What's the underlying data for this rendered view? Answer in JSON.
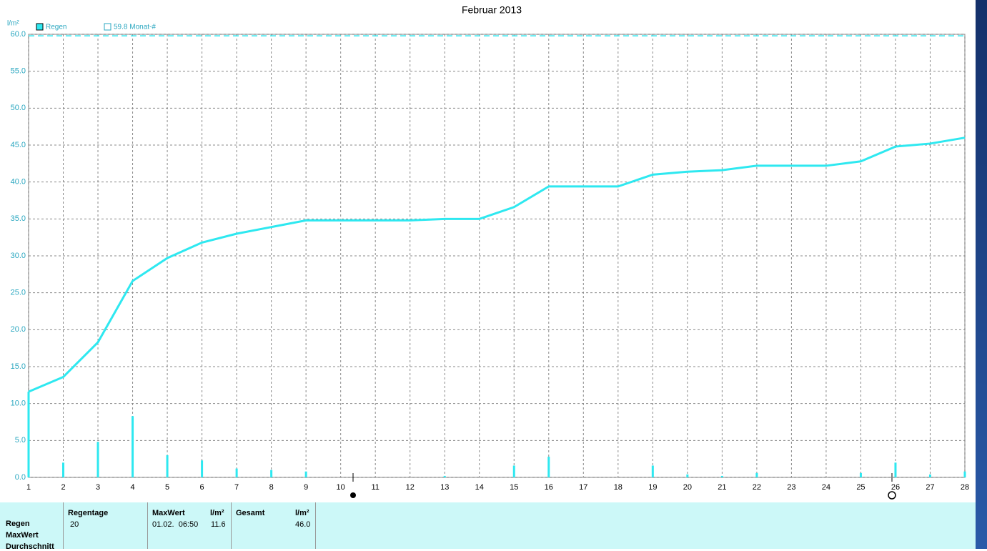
{
  "chart_data": {
    "type": "line",
    "title": "Februar 2013",
    "y_label": "l/m²",
    "x": [
      1,
      2,
      3,
      4,
      5,
      6,
      7,
      8,
      9,
      10,
      11,
      12,
      13,
      14,
      15,
      16,
      17,
      18,
      19,
      20,
      21,
      22,
      23,
      24,
      25,
      26,
      27,
      28
    ],
    "series": [
      {
        "name": "Regen",
        "color": "#2ee8f0",
        "values": [
          11.6,
          13.6,
          18.3,
          26.6,
          29.7,
          31.8,
          33.0,
          33.9,
          34.8,
          34.8,
          34.8,
          34.8,
          35.0,
          35.0,
          36.6,
          39.4,
          39.4,
          39.4,
          41.0,
          41.4,
          41.6,
          42.2,
          42.2,
          42.2,
          42.8,
          44.8,
          45.2,
          46.0
        ],
        "daily": [
          11.6,
          2.0,
          4.8,
          8.3,
          3.0,
          2.3,
          1.2,
          1.0,
          0.8,
          0,
          0,
          0,
          0.2,
          0,
          1.6,
          2.8,
          0,
          0,
          1.6,
          0.4,
          0.2,
          0.6,
          0,
          0,
          0.6,
          2.0,
          0.4,
          0.8
        ]
      }
    ],
    "reference": {
      "label": "59.8 Monat-#",
      "value": 59.8
    },
    "xlim": [
      1,
      28
    ],
    "xticks": [
      1,
      2,
      3,
      4,
      5,
      6,
      7,
      8,
      9,
      10,
      11,
      12,
      13,
      14,
      15,
      16,
      17,
      18,
      19,
      20,
      21,
      22,
      23,
      24,
      25,
      26,
      27,
      28
    ],
    "ylim": [
      0,
      60
    ],
    "yticks": [
      {
        "value": 0,
        "label": "0.0"
      },
      {
        "value": 5,
        "label": "5.0"
      },
      {
        "value": 10,
        "label": "10.0"
      },
      {
        "value": 15,
        "label": "15.0"
      },
      {
        "value": 20,
        "label": "20.0"
      },
      {
        "value": 25,
        "label": "25.0"
      },
      {
        "value": 30,
        "label": "30.0"
      },
      {
        "value": 35,
        "label": "35.0"
      },
      {
        "value": 40,
        "label": "40.0"
      },
      {
        "value": 45,
        "label": "45.0"
      },
      {
        "value": 50,
        "label": "50.0"
      },
      {
        "value": 55,
        "label": "55.0"
      },
      {
        "value": 60,
        "label": "60.0"
      }
    ],
    "grid": true
  },
  "summary": {
    "row_labels": [
      "Regen",
      "MaxWert",
      "Durchschnitt"
    ],
    "headers": [
      "Regentage",
      "MaxWert",
      "l/m²",
      "Gesamt",
      "l/m²"
    ],
    "values": [
      "20",
      "01.02.  06:50",
      "11.6",
      "46.0"
    ]
  }
}
